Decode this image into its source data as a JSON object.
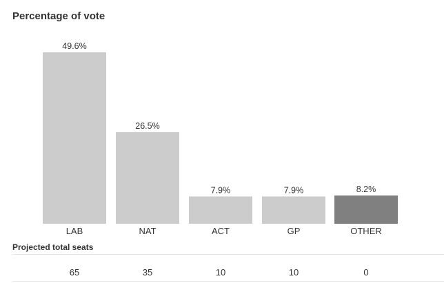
{
  "chart_data": {
    "type": "bar",
    "title": "Percentage of vote",
    "categories": [
      "LAB",
      "NAT",
      "ACT",
      "GP",
      "OTHER"
    ],
    "values": [
      49.6,
      26.5,
      7.9,
      7.9,
      8.2
    ],
    "value_labels": [
      "49.6%",
      "26.5%",
      "7.9%",
      "7.9%",
      "8.2%"
    ],
    "bar_colors": [
      "#cccccc",
      "#cccccc",
      "#cccccc",
      "#cccccc",
      "#808080"
    ],
    "xlabel": "",
    "ylabel": "",
    "ylim": [
      0,
      49.6
    ],
    "grid": false,
    "legend": "none"
  },
  "seats": {
    "title": "Projected total seats",
    "values": [
      "65",
      "35",
      "10",
      "10",
      "0"
    ]
  },
  "colors": {
    "bar": "#cccccc",
    "bar_highlight": "#808080",
    "text": "#333333",
    "rule": "#e6e6e6"
  }
}
